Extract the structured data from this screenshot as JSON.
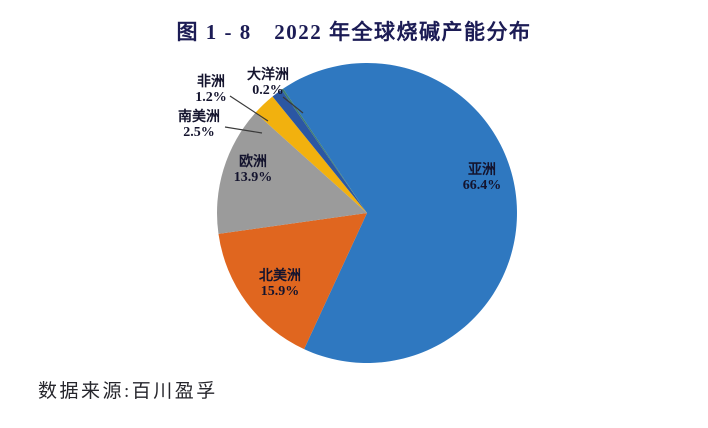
{
  "figure": {
    "title": "图 1 - 8　2022 年全球烧碱产能分布",
    "source": "数据来源:百川盈孚"
  },
  "chart_data": {
    "type": "pie",
    "title": "图 1 - 8　2022 年全球烧碱产能分布",
    "source": "数据来源:百川盈孚",
    "unit": "%",
    "legend": "none",
    "labels": "category name + percent, inside large slices, callout leader lines for small slices",
    "start_angle_deg": 326,
    "direction": "clockwise",
    "slices": [
      {
        "key": "asia",
        "name": "亚洲",
        "value": 66.4,
        "pct_label": "66.4%",
        "color": "#2F78C0"
      },
      {
        "key": "north-america",
        "name": "北美洲",
        "value": 15.9,
        "pct_label": "15.9%",
        "color": "#E0661F"
      },
      {
        "key": "europe",
        "name": "欧洲",
        "value": 13.9,
        "pct_label": "13.9%",
        "color": "#9B9B9B"
      },
      {
        "key": "south-america",
        "name": "南美洲",
        "value": 2.5,
        "pct_label": "2.5%",
        "color": "#F2B10E"
      },
      {
        "key": "africa",
        "name": "非洲",
        "value": 1.2,
        "pct_label": "1.2%",
        "color": "#2B57A3"
      },
      {
        "key": "oceania",
        "name": "大洋洲",
        "value": 0.2,
        "pct_label": "0.2%",
        "color": "#3E7C70"
      }
    ]
  }
}
